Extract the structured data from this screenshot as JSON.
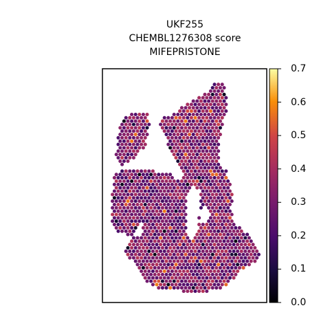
{
  "title_lines": [
    "UKF255",
    "CHEMBL1276308 score",
    "MIFEPRISTONE"
  ],
  "colorbar": {
    "colormap": "inferno",
    "min": 0.0,
    "max": 0.7,
    "ticks": [
      "0.0",
      "0.1",
      "0.2",
      "0.3",
      "0.4",
      "0.5",
      "0.6",
      "0.7"
    ]
  },
  "chart_data": {
    "type": "scatter",
    "subtype": "hexagonal spatial spot map",
    "title": "UKF255 CHEMBL1276308 score MIFEPRISTONE",
    "xlabel": "",
    "ylabel": "",
    "axes_ticks_visible": false,
    "value_range": [
      0.0,
      0.7
    ],
    "typical_value_range": [
      0.2,
      0.45
    ],
    "grid": false,
    "legend": "colorbar-right"
  }
}
